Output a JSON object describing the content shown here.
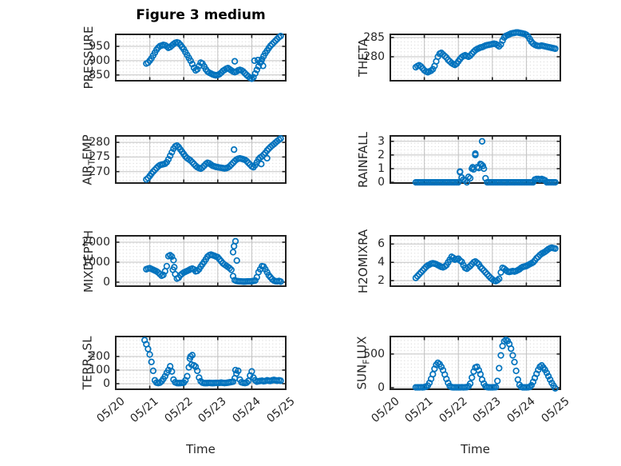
{
  "figure": {
    "title": "Figure 3 medium",
    "xlabel": "Time"
  },
  "chart_data": {
    "type": "scatter",
    "marker": "open-circle",
    "grid": "major-solid-minor-dotted",
    "x_axis": {
      "xlim": [
        0,
        5
      ],
      "ticks": [
        0,
        1,
        2,
        3,
        4,
        5
      ],
      "labels": [
        "05/20",
        "05/21",
        "05/22",
        "05/23",
        "05/24",
        "05/25"
      ],
      "label": "Time"
    },
    "style": {
      "marker_color": "#0072BD",
      "axes_color": "#212121",
      "grid_color": "#c3c3c3",
      "minor_grid_color": "#d4d4d4",
      "text_color": "#262626"
    },
    "subplots": [
      {
        "id": "pressure",
        "row": 0,
        "col": 0,
        "ylabel": "PRESSURE",
        "ylabel_display": {
          "pre": "PRESSURE",
          "sub": "",
          "post": ""
        },
        "ylim": [
          830,
          992
        ],
        "yticks": {
          "values": [
            850,
            900,
            950
          ],
          "labels": [
            "850",
            "900",
            "950"
          ]
        },
        "points": {
          "t0": 0.9,
          "dt": 0.05,
          "values": [
            890,
            893,
            900,
            908,
            918,
            928,
            938,
            946,
            951,
            953,
            955,
            954,
            950,
            945,
            948,
            953,
            958,
            962,
            964,
            962,
            956,
            948,
            940,
            930,
            920,
            910,
            900,
            888,
            875,
            866,
            870,
            882,
            893,
            890,
            880,
            870,
            862,
            858,
            855,
            852,
            850,
            849,
            850,
            853,
            858,
            864,
            868,
            872,
            874,
            870,
            866,
            862,
            860,
            862,
            866,
            868,
            866,
            862,
            856,
            850,
            845,
            840,
            837,
            842,
            855,
            868,
            880,
            893,
            905,
            916,
            926,
            935,
            944,
            952,
            958,
            964,
            970,
            976,
            982,
            986
          ],
          "extra": [
            [
              3.5,
              898
            ],
            [
              4.08,
              900
            ],
            [
              4.18,
              902
            ],
            [
              4.28,
              898
            ],
            [
              4.33,
              882
            ]
          ]
        }
      },
      {
        "id": "theta",
        "row": 0,
        "col": 1,
        "ylabel": "THETA",
        "ylabel_display": {
          "pre": "THETA",
          "sub": "",
          "post": ""
        },
        "ylim": [
          273.8,
          285.8
        ],
        "yticks": {
          "values": [
            280,
            285
          ],
          "labels": [
            "280",
            "285"
          ]
        },
        "points": {
          "t0": 0.75,
          "dt": 0.05,
          "values": [
            277.3,
            277.6,
            277.8,
            277.5,
            277.0,
            276.5,
            276.2,
            276.0,
            276.2,
            276.4,
            276.8,
            277.6,
            278.8,
            280.0,
            280.8,
            281.0,
            280.6,
            280.2,
            279.8,
            279.2,
            278.8,
            278.4,
            278.1,
            277.9,
            278.2,
            278.8,
            279.4,
            279.9,
            280.2,
            280.4,
            280.2,
            280.0,
            280.3,
            280.8,
            281.3,
            281.7,
            282.0,
            282.2,
            282.4,
            282.5,
            282.7,
            282.9,
            283.0,
            283.1,
            283.2,
            283.3,
            283.4,
            283.3,
            283.0,
            282.7,
            283.2,
            284.2,
            285.0,
            285.4,
            285.6,
            285.8,
            286.0,
            286.1,
            286.2,
            286.3,
            286.3,
            286.2,
            286.1,
            286.0,
            285.9,
            285.7,
            285.3,
            284.6,
            283.9,
            283.4,
            283.1,
            282.9,
            282.8,
            282.8,
            282.9,
            282.8,
            282.7,
            282.6,
            282.5,
            282.4,
            282.3,
            282.2,
            282.1
          ],
          "extra": []
        }
      },
      {
        "id": "air-temp",
        "row": 1,
        "col": 0,
        "ylabel": "AIR_TEMP",
        "ylabel_display": {
          "pre": "AIR",
          "sub": "T",
          "post": "EMP"
        },
        "ylim": [
          266.1,
          282.2
        ],
        "yticks": {
          "values": [
            270,
            275,
            280
          ],
          "labels": [
            "270",
            "275",
            "280"
          ]
        },
        "points": {
          "t0": 0.9,
          "dt": 0.05,
          "values": [
            267.3,
            267.8,
            268.5,
            269.3,
            270.0,
            270.6,
            271.2,
            271.8,
            272.2,
            272.4,
            272.5,
            272.7,
            273.2,
            274.2,
            275.4,
            276.6,
            277.8,
            278.6,
            278.9,
            278.4,
            277.6,
            276.8,
            276.0,
            275.2,
            274.6,
            274.2,
            273.8,
            273.2,
            272.6,
            272.0,
            271.5,
            271.2,
            271.0,
            271.4,
            272.0,
            272.6,
            273.0,
            272.8,
            272.4,
            272.0,
            271.8,
            271.6,
            271.5,
            271.4,
            271.3,
            271.2,
            271.1,
            271.2,
            271.4,
            271.8,
            272.4,
            273.0,
            273.6,
            274.1,
            274.4,
            274.5,
            274.4,
            274.2,
            274.0,
            273.6,
            273.0,
            272.4,
            271.8,
            271.5,
            272.2,
            273.2,
            274.2,
            274.8,
            275.2,
            275.8,
            276.4,
            277.2,
            277.8,
            278.4,
            278.9,
            279.4,
            279.9,
            280.4,
            280.9,
            281.3
          ],
          "extra": [
            [
              3.48,
              277.5
            ],
            [
              4.28,
              272.6
            ],
            [
              4.45,
              274.6
            ]
          ]
        }
      },
      {
        "id": "rainfall",
        "row": 1,
        "col": 1,
        "ylabel": "RAINFALL",
        "ylabel_display": {
          "pre": "RAINFALL",
          "sub": "",
          "post": ""
        },
        "ylim": [
          -0.05,
          3.4
        ],
        "yticks": {
          "values": [
            0,
            1,
            2,
            3
          ],
          "labels": [
            "0",
            "1",
            "2",
            "3"
          ]
        },
        "points": {
          "t0": 0.75,
          "dt": 0.05,
          "values": [
            0,
            0,
            0,
            0,
            0,
            0,
            0,
            0,
            0,
            0,
            0,
            0,
            0,
            0,
            0,
            0,
            0,
            0,
            0,
            0,
            0,
            0,
            0,
            0,
            0,
            0,
            0.8,
            0.35,
            0.2,
            0.15,
            0,
            0.4,
            0.3,
            1.0,
            0.95,
            2.1,
            1.1,
            1.05,
            1.35,
            3.0,
            1.0,
            0.3,
            0,
            0,
            0,
            0,
            0,
            0,
            0,
            0,
            0,
            0,
            0,
            0,
            0,
            0,
            0,
            0,
            0,
            0,
            0,
            0,
            0,
            0,
            0,
            0,
            0,
            0,
            0,
            0,
            0.2,
            0.25,
            0.25,
            0.2,
            0.25,
            0.2,
            0.15,
            0,
            0,
            0,
            0,
            0,
            0
          ],
          "extra": [
            [
              2.42,
              1.1
            ],
            [
              2.5,
              2.0
            ],
            [
              2.68,
              1.3
            ],
            [
              2.72,
              1.2
            ],
            [
              2.05,
              0.75
            ]
          ]
        }
      },
      {
        "id": "mixdepth",
        "row": 2,
        "col": 0,
        "ylabel": "MIXDEPTH",
        "ylabel_display": {
          "pre": "MIXDEPTH",
          "sub": "",
          "post": ""
        },
        "ylim": [
          -200,
          2320
        ],
        "yticks": {
          "values": [
            0,
            1000,
            2000
          ],
          "labels": [
            "0",
            "1000",
            "2000"
          ]
        },
        "points": {
          "t0": 0.9,
          "dt": 0.05,
          "values": [
            650,
            680,
            700,
            660,
            620,
            580,
            540,
            480,
            400,
            320,
            360,
            550,
            800,
            1300,
            1350,
            1280,
            1100,
            400,
            180,
            220,
            350,
            420,
            480,
            520,
            560,
            600,
            650,
            680,
            640,
            540,
            560,
            650,
            780,
            900,
            1020,
            1150,
            1280,
            1350,
            1380,
            1350,
            1320,
            1280,
            1250,
            1150,
            1050,
            950,
            880,
            820,
            760,
            700,
            620,
            300,
            100,
            60,
            50,
            40,
            35,
            30,
            30,
            35,
            40,
            40,
            45,
            60,
            80,
            250,
            500,
            650,
            800,
            780,
            650,
            500,
            350,
            250,
            150,
            80,
            50,
            40,
            60,
            30
          ],
          "extra": [
            [
              1.68,
              620
            ],
            [
              1.72,
              750
            ],
            [
              3.45,
              1500
            ],
            [
              3.48,
              1800
            ],
            [
              3.52,
              2050
            ],
            [
              3.56,
              1080
            ]
          ]
        }
      },
      {
        "id": "h2omixra",
        "row": 2,
        "col": 1,
        "ylabel": "H2OMIXRA",
        "ylabel_display": {
          "pre": "H2OMIXRA",
          "sub": "",
          "post": ""
        },
        "ylim": [
          1.4,
          6.9
        ],
        "yticks": {
          "values": [
            2,
            4,
            6
          ],
          "labels": [
            "2",
            "4",
            "6"
          ]
        },
        "points": {
          "t0": 0.75,
          "dt": 0.05,
          "values": [
            2.3,
            2.5,
            2.7,
            2.9,
            3.1,
            3.3,
            3.5,
            3.65,
            3.75,
            3.85,
            3.9,
            3.85,
            3.8,
            3.7,
            3.6,
            3.5,
            3.45,
            3.55,
            3.7,
            4.0,
            4.3,
            4.6,
            4.5,
            4.3,
            4.35,
            4.4,
            4.2,
            4.05,
            3.7,
            3.4,
            3.3,
            3.45,
            3.6,
            3.8,
            4.0,
            4.1,
            3.95,
            3.8,
            3.5,
            3.3,
            3.1,
            2.9,
            2.7,
            2.5,
            2.3,
            2.15,
            2.0,
            1.95,
            2.05,
            2.2,
            2.9,
            3.4,
            3.3,
            3.15,
            3.0,
            2.95,
            3.0,
            3.05,
            3.0,
            3.05,
            3.15,
            3.25,
            3.4,
            3.5,
            3.55,
            3.6,
            3.7,
            3.8,
            3.9,
            4.0,
            4.2,
            4.45,
            4.6,
            4.8,
            4.95,
            5.05,
            5.15,
            5.3,
            5.45,
            5.55,
            5.6,
            5.55,
            5.5
          ],
          "extra": []
        }
      },
      {
        "id": "terr-msl",
        "row": 3,
        "col": 0,
        "ylabel": "TERR_MSL",
        "ylabel_display": {
          "pre": "TERR",
          "sub": "M",
          "post": "SL"
        },
        "ylim": [
          -41,
          347
        ],
        "yticks": {
          "values": [
            0,
            100,
            200
          ],
          "labels": [
            "0",
            "100",
            "200"
          ]
        },
        "points": {
          "t0": 0.85,
          "dt": 0.05,
          "values": [
            320,
            290,
            255,
            215,
            160,
            95,
            25,
            8,
            5,
            8,
            18,
            35,
            55,
            80,
            100,
            128,
            90,
            30,
            10,
            5,
            4,
            5,
            6,
            8,
            25,
            55,
            120,
            200,
            210,
            135,
            125,
            95,
            45,
            18,
            8,
            5,
            4,
            5,
            6,
            5,
            4,
            5,
            6,
            5,
            6,
            8,
            6,
            5,
            6,
            8,
            10,
            12,
            15,
            40,
            75,
            95,
            30,
            10,
            6,
            5,
            8,
            20,
            60,
            90,
            45,
            25,
            15,
            18,
            20,
            22,
            18,
            20,
            25,
            22,
            20,
            25,
            28,
            25,
            22,
            25,
            22
          ],
          "extra": [
            [
              2.18,
              185
            ],
            [
              2.23,
              140
            ],
            [
              3.52,
              100
            ]
          ]
        }
      },
      {
        "id": "sun-flux",
        "row": 3,
        "col": 1,
        "ylabel": "SUN_FLUX",
        "ylabel_display": {
          "pre": "SUN",
          "sub": "F",
          "post": "LUX"
        },
        "ylim": [
          -24,
          761
        ],
        "yticks": {
          "values": [
            0,
            500
          ],
          "labels": [
            "0",
            "500"
          ]
        },
        "points": {
          "t0": 0.75,
          "dt": 0.05,
          "values": [
            5,
            4,
            5,
            6,
            5,
            8,
            15,
            30,
            70,
            130,
            200,
            280,
            340,
            370,
            350,
            310,
            260,
            195,
            130,
            70,
            25,
            8,
            5,
            4,
            5,
            4,
            5,
            6,
            5,
            6,
            8,
            20,
            60,
            150,
            240,
            300,
            310,
            260,
            200,
            120,
            60,
            20,
            8,
            5,
            4,
            5,
            6,
            8,
            100,
            290,
            480,
            620,
            690,
            710,
            695,
            650,
            580,
            480,
            380,
            250,
            120,
            40,
            10,
            5,
            4,
            5,
            6,
            10,
            35,
            85,
            145,
            205,
            265,
            310,
            330,
            300,
            265,
            220,
            170,
            120,
            70,
            30,
            -10
          ],
          "extra": []
        }
      }
    ]
  }
}
